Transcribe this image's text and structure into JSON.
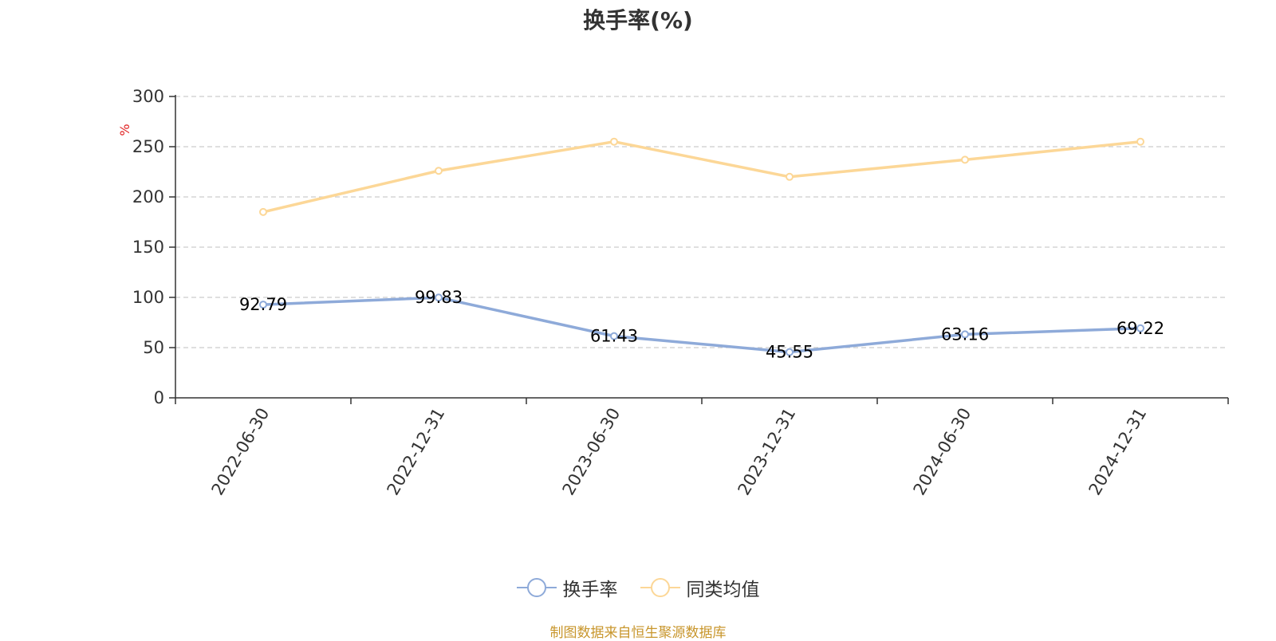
{
  "chart_data": {
    "type": "line",
    "title": "换手率(%)",
    "xlabel": "",
    "ylabel": "%",
    "ylim": [
      0,
      300
    ],
    "yticks": [
      0,
      50,
      100,
      150,
      200,
      250,
      300
    ],
    "categories": [
      "2022-06-30",
      "2022-12-31",
      "2023-06-30",
      "2023-12-31",
      "2024-06-30",
      "2024-12-31"
    ],
    "series": [
      {
        "name": "换手率",
        "color": "#8eaad9",
        "values": [
          92.79,
          99.83,
          61.43,
          45.55,
          63.16,
          69.22
        ],
        "labels": [
          "92.79",
          "99.83",
          "61.43",
          "45.55",
          "63.16",
          "69.22"
        ]
      },
      {
        "name": "同类均值",
        "color": "#fcd797",
        "values": [
          185,
          226,
          255,
          220,
          237,
          255
        ]
      }
    ],
    "grid": true,
    "legend_position": "bottom-center"
  },
  "source_note": "制图数据来自恒生聚源数据库",
  "colors": {
    "ylabel": "#e02020",
    "axis": "#333333",
    "grid": "#cccccc",
    "source": "#c8962c"
  }
}
